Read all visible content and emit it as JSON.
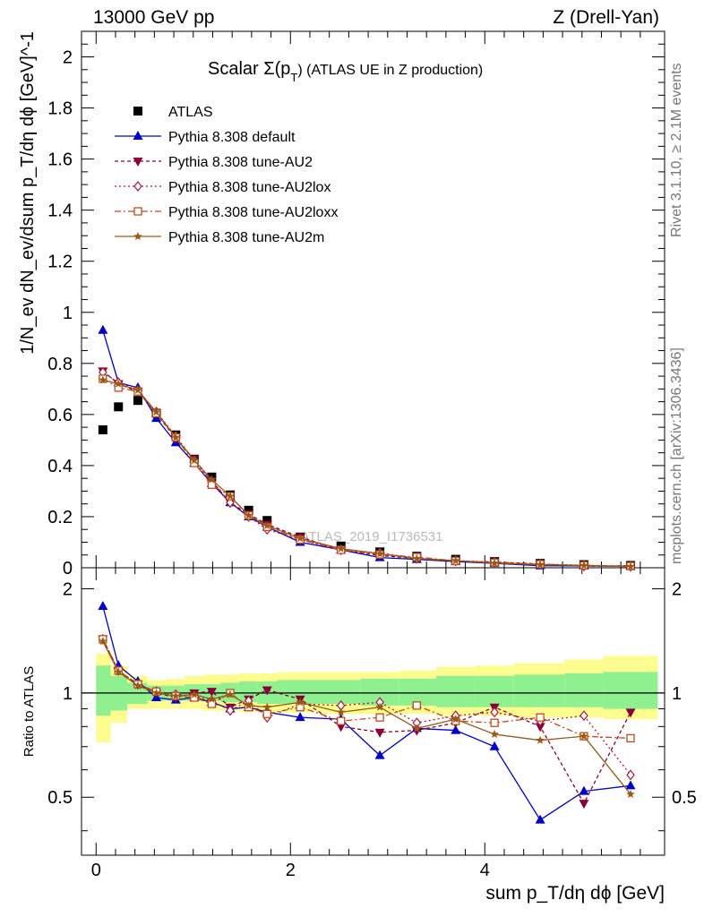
{
  "header": {
    "left": "13000 GeV pp",
    "right": "Z (Drell-Yan)"
  },
  "side_labels": {
    "rivet": "Rivet 3.1.10, ≥ 2.1M events",
    "mcplots": "mcplots.cern.ch [arXiv:1306.3436]"
  },
  "watermark": "ATLAS_2019_I1736531",
  "chart_data": [
    {
      "type": "scatter",
      "title_main": "Scalar Σ(p",
      "title_sub": "T",
      "title_rest": ") (ATLAS UE in Z production)",
      "ylabel": "1/N_ev dN_ev/dsum p_T/dη dϕ [GeV]^-1",
      "xlabel": "sum p_T/dη dϕ [GeV]",
      "xlim": [
        -0.15,
        5.85
      ],
      "ylim": [
        0,
        2.1
      ],
      "yticks": [
        0,
        0.2,
        0.4,
        0.6,
        0.8,
        1,
        1.2,
        1.4,
        1.6,
        1.8,
        2
      ],
      "yticklabels": [
        "0",
        "0.2",
        "0.4",
        "0.6",
        "0.8",
        "1",
        "1.2",
        "1.4",
        "1.6",
        "1.8",
        "2"
      ],
      "xticks": [
        0,
        2,
        4
      ],
      "x": [
        0.07,
        0.23,
        0.43,
        0.62,
        0.82,
        1.01,
        1.19,
        1.38,
        1.57,
        1.76,
        2.1,
        2.52,
        2.92,
        3.3,
        3.7,
        4.1,
        4.57,
        5.02,
        5.5
      ],
      "series": [
        {
          "name": "ATLAS",
          "color": "#000000",
          "marker": "square",
          "dash": "none",
          "values": [
            0.54,
            0.63,
            0.655,
            0.605,
            0.52,
            0.425,
            0.355,
            0.285,
            0.225,
            0.185,
            0.12,
            0.085,
            0.062,
            0.045,
            0.033,
            0.024,
            0.017,
            0.012,
            0.009
          ]
        },
        {
          "name": "Pythia 8.308 default",
          "color": "#0000cc",
          "marker": "triangle-up",
          "dash": "none",
          "values": [
            0.93,
            0.725,
            0.705,
            0.585,
            0.49,
            0.41,
            0.33,
            0.255,
            0.2,
            0.16,
            0.1,
            0.07,
            0.04,
            0.033,
            0.024,
            0.017,
            0.008,
            0.007,
            0.006
          ]
        },
        {
          "name": "Pythia 8.308 tune-AU2",
          "color": "#8b0038",
          "marker": "triangle-down",
          "dash": "4,3",
          "values": [
            0.77,
            0.72,
            0.69,
            0.605,
            0.505,
            0.425,
            0.34,
            0.255,
            0.21,
            0.17,
            0.12,
            0.07,
            0.048,
            0.036,
            0.026,
            0.022,
            0.015,
            0.006,
            0.008
          ]
        },
        {
          "name": "Pythia 8.308 tune-AU2lox",
          "color": "#b0173a",
          "marker": "diamond-open",
          "dash": "2,3",
          "values": [
            0.765,
            0.725,
            0.695,
            0.61,
            0.515,
            0.42,
            0.335,
            0.255,
            0.2,
            0.15,
            0.11,
            0.07,
            0.058,
            0.037,
            0.028,
            0.022,
            0.014,
            0.01,
            0.005
          ]
        },
        {
          "name": "Pythia 8.308 tune-AU2loxx",
          "color": "#c24a1a",
          "marker": "square-open",
          "dash": "7,3,2,3",
          "values": [
            0.74,
            0.705,
            0.69,
            0.605,
            0.51,
            0.41,
            0.325,
            0.28,
            0.205,
            0.16,
            0.11,
            0.07,
            0.052,
            0.042,
            0.027,
            0.02,
            0.014,
            0.009,
            0.0065
          ]
        },
        {
          "name": "Pythia 8.308 tune-AU2m",
          "color": "#9a5a14",
          "marker": "star",
          "dash": "none",
          "values": [
            0.735,
            0.72,
            0.695,
            0.61,
            0.51,
            0.42,
            0.345,
            0.28,
            0.205,
            0.165,
            0.115,
            0.075,
            0.055,
            0.036,
            0.028,
            0.018,
            0.012,
            0.009,
            0.0045
          ]
        }
      ]
    },
    {
      "type": "scatter",
      "ylabel": "Ratio to ATLAS",
      "ylim": [
        0.34,
        2.3
      ],
      "yticks": [
        0.5,
        1,
        2
      ],
      "yticklabels": [
        "0.5",
        "1",
        "2"
      ],
      "xticks": [
        0,
        2,
        4
      ],
      "xticklabels": [
        "0",
        "2",
        "4"
      ],
      "xlim": [
        -0.15,
        5.85
      ],
      "band_edges": [
        0,
        0.15,
        0.32,
        0.53,
        0.72,
        0.91,
        1.1,
        1.28,
        1.47,
        1.66,
        1.86,
        2.32,
        2.72,
        3.12,
        3.5,
        3.9,
        4.3,
        4.82,
        5.22,
        5.78
      ],
      "band_green": [
        [
          0.86,
          1.2
        ],
        [
          0.89,
          1.12
        ],
        [
          0.93,
          1.07
        ],
        [
          0.95,
          1.05
        ],
        [
          0.95,
          1.05
        ],
        [
          0.95,
          1.06
        ],
        [
          0.95,
          1.06
        ],
        [
          0.94,
          1.07
        ],
        [
          0.94,
          1.08
        ],
        [
          0.93,
          1.08
        ],
        [
          0.93,
          1.09
        ],
        [
          0.93,
          1.09
        ],
        [
          0.92,
          1.1
        ],
        [
          0.92,
          1.1
        ],
        [
          0.91,
          1.12
        ],
        [
          0.91,
          1.12
        ],
        [
          0.91,
          1.13
        ],
        [
          0.91,
          1.14
        ],
        [
          0.9,
          1.15
        ]
      ],
      "band_yellow": [
        [
          0.72,
          1.3
        ],
        [
          0.82,
          1.2
        ],
        [
          0.9,
          1.12
        ],
        [
          0.9,
          1.09
        ],
        [
          0.9,
          1.1
        ],
        [
          0.9,
          1.12
        ],
        [
          0.89,
          1.13
        ],
        [
          0.89,
          1.13
        ],
        [
          0.88,
          1.14
        ],
        [
          0.88,
          1.14
        ],
        [
          0.88,
          1.15
        ],
        [
          0.87,
          1.15
        ],
        [
          0.87,
          1.15
        ],
        [
          0.87,
          1.16
        ],
        [
          0.86,
          1.19
        ],
        [
          0.86,
          1.2
        ],
        [
          0.85,
          1.22
        ],
        [
          0.85,
          1.25
        ],
        [
          0.84,
          1.28
        ]
      ],
      "series": [
        {
          "name": "Pythia 8.308 default",
          "values": [
            1.78,
            1.2,
            1.08,
            0.97,
            0.955,
            0.97,
            0.94,
            0.9,
            0.91,
            0.88,
            0.85,
            0.84,
            0.66,
            0.79,
            0.78,
            0.7,
            0.43,
            0.52,
            0.54
          ]
        },
        {
          "name": "Pythia 8.308 tune-AU2",
          "values": [
            1.43,
            1.16,
            1.06,
            1.0,
            0.97,
            1.0,
            1.01,
            0.91,
            0.96,
            1.02,
            0.96,
            0.8,
            0.77,
            0.78,
            0.82,
            0.91,
            0.8,
            0.48,
            0.88
          ]
        },
        {
          "name": "Pythia 8.308 tune-AU2lox",
          "values": [
            1.43,
            1.16,
            1.06,
            1.01,
            0.99,
            0.98,
            0.95,
            0.89,
            0.95,
            0.85,
            0.93,
            0.92,
            0.94,
            0.82,
            0.86,
            0.88,
            0.83,
            0.86,
            0.58
          ]
        },
        {
          "name": "Pythia 8.308 tune-AU2loxx",
          "values": [
            1.43,
            1.16,
            1.06,
            1.01,
            0.98,
            0.97,
            0.93,
            1.0,
            0.91,
            0.87,
            0.91,
            0.83,
            0.85,
            0.92,
            0.83,
            0.82,
            0.85,
            0.75,
            0.74
          ]
        },
        {
          "name": "Pythia 8.308 tune-AU2m",
          "values": [
            1.41,
            1.15,
            1.05,
            1.0,
            0.98,
            0.99,
            0.96,
            0.99,
            0.92,
            0.91,
            0.94,
            0.88,
            0.91,
            0.79,
            0.84,
            0.76,
            0.73,
            0.75,
            0.51
          ]
        }
      ]
    }
  ]
}
